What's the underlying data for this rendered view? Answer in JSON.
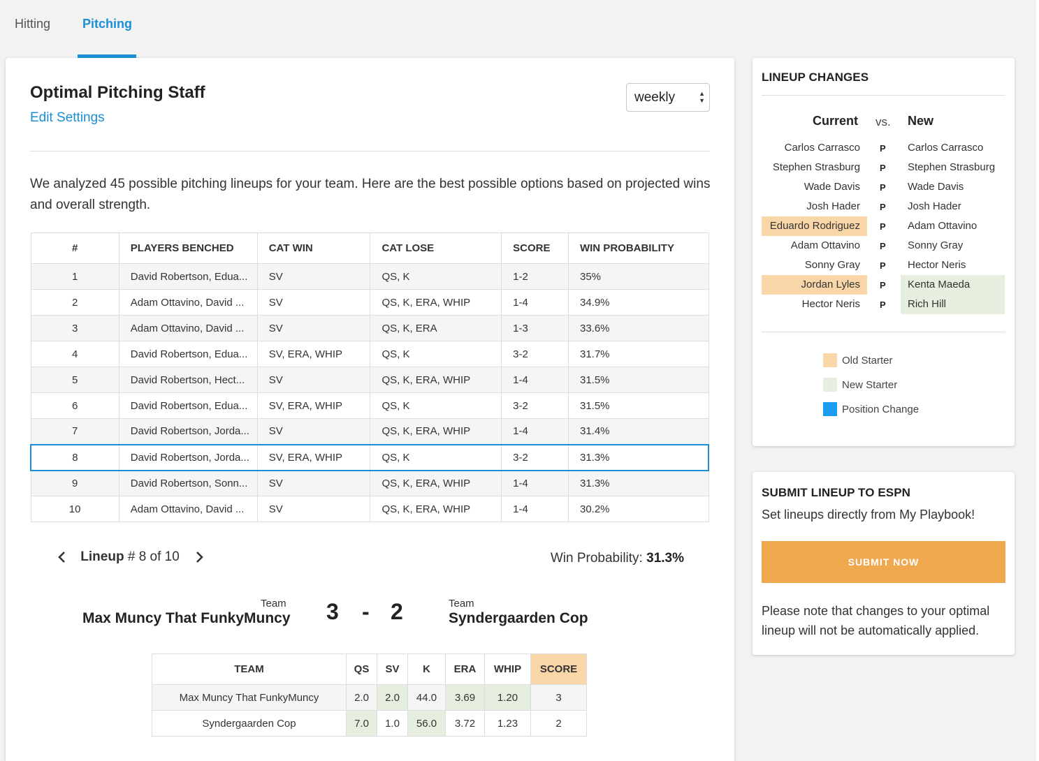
{
  "tabs": [
    {
      "label": "Hitting",
      "active": false
    },
    {
      "label": "Pitching",
      "active": true
    }
  ],
  "main": {
    "title": "Optimal Pitching Staff",
    "edit_link": "Edit Settings",
    "period": "weekly",
    "intro": "We analyzed 45 possible pitching lineups for your team. Here are the best possible options based on projected wins and overall strength.",
    "table": {
      "headers": [
        "#",
        "PLAYERS BENCHED",
        "CAT WIN",
        "CAT LOSE",
        "SCORE",
        "WIN PROBABILITY"
      ],
      "rows": [
        {
          "num": "1",
          "benched": "David Robertson, Edua...",
          "cat_win": "SV",
          "cat_lose": "QS, K",
          "score": "1-2",
          "win_prob": "35%"
        },
        {
          "num": "2",
          "benched": "Adam Ottavino, David ...",
          "cat_win": "SV",
          "cat_lose": "QS, K, ERA, WHIP",
          "score": "1-4",
          "win_prob": "34.9%"
        },
        {
          "num": "3",
          "benched": "Adam Ottavino, David ...",
          "cat_win": "SV",
          "cat_lose": "QS, K, ERA",
          "score": "1-3",
          "win_prob": "33.6%"
        },
        {
          "num": "4",
          "benched": "David Robertson, Edua...",
          "cat_win": "SV, ERA, WHIP",
          "cat_lose": "QS, K",
          "score": "3-2",
          "win_prob": "31.7%"
        },
        {
          "num": "5",
          "benched": "David Robertson, Hect...",
          "cat_win": "SV",
          "cat_lose": "QS, K, ERA, WHIP",
          "score": "1-4",
          "win_prob": "31.5%"
        },
        {
          "num": "6",
          "benched": "David Robertson, Edua...",
          "cat_win": "SV, ERA, WHIP",
          "cat_lose": "QS, K",
          "score": "3-2",
          "win_prob": "31.5%"
        },
        {
          "num": "7",
          "benched": "David Robertson, Jorda...",
          "cat_win": "SV",
          "cat_lose": "QS, K, ERA, WHIP",
          "score": "1-4",
          "win_prob": "31.4%"
        },
        {
          "num": "8",
          "benched": "David Robertson, Jorda...",
          "cat_win": "SV, ERA, WHIP",
          "cat_lose": "QS, K",
          "score": "3-2",
          "win_prob": "31.3%"
        },
        {
          "num": "9",
          "benched": "David Robertson, Sonn...",
          "cat_win": "SV",
          "cat_lose": "QS, K, ERA, WHIP",
          "score": "1-4",
          "win_prob": "31.3%"
        },
        {
          "num": "10",
          "benched": "Adam Ottavino, David ...",
          "cat_win": "SV",
          "cat_lose": "QS, K, ERA, WHIP",
          "score": "1-4",
          "win_prob": "30.2%"
        }
      ],
      "selected_index": 7
    },
    "lineup_nav": {
      "label": "Lineup",
      "number_text": "# 8 of 10",
      "win_prob_label": "Win Probability:",
      "win_prob_value": "31.3%"
    },
    "matchup": {
      "team_label": "Team",
      "home_team": "Max Muncy That FunkyMuncy",
      "away_team": "Syndergaarden Cop",
      "home_score": "3",
      "separator": "-",
      "away_score": "2"
    },
    "category_table": {
      "headers": [
        "TEAM",
        "QS",
        "SV",
        "K",
        "ERA",
        "WHIP",
        "SCORE"
      ],
      "rows": [
        {
          "team": "Max Muncy That FunkyMuncy",
          "values": [
            "2.0",
            "2.0",
            "44.0",
            "3.69",
            "1.20"
          ],
          "score": "3",
          "wins": [
            false,
            true,
            false,
            true,
            true
          ]
        },
        {
          "team": "Syndergaarden Cop",
          "values": [
            "7.0",
            "1.0",
            "56.0",
            "3.72",
            "1.23"
          ],
          "score": "2",
          "wins": [
            true,
            false,
            true,
            false,
            false
          ]
        }
      ]
    }
  },
  "lineup_changes": {
    "title": "LINEUP CHANGES",
    "current_label": "Current",
    "vs_label": "vs.",
    "new_label": "New",
    "rows": [
      {
        "current": "Carlos Carrasco",
        "pos": "P",
        "new": "Carlos Carrasco",
        "current_status": "",
        "new_status": ""
      },
      {
        "current": "Stephen Strasburg",
        "pos": "P",
        "new": "Stephen Strasburg",
        "current_status": "",
        "new_status": ""
      },
      {
        "current": "Wade Davis",
        "pos": "P",
        "new": "Wade Davis",
        "current_status": "",
        "new_status": ""
      },
      {
        "current": "Josh Hader",
        "pos": "P",
        "new": "Josh Hader",
        "current_status": "",
        "new_status": ""
      },
      {
        "current": "Eduardo Rodriguez",
        "pos": "P",
        "new": "Adam Ottavino",
        "current_status": "old",
        "new_status": ""
      },
      {
        "current": "Adam Ottavino",
        "pos": "P",
        "new": "Sonny Gray",
        "current_status": "",
        "new_status": ""
      },
      {
        "current": "Sonny Gray",
        "pos": "P",
        "new": "Hector Neris",
        "current_status": "",
        "new_status": ""
      },
      {
        "current": "Jordan Lyles",
        "pos": "P",
        "new": "Kenta Maeda",
        "current_status": "old",
        "new_status": "new"
      },
      {
        "current": "Hector Neris",
        "pos": "P",
        "new": "Rich Hill",
        "current_status": "",
        "new_status": "new"
      }
    ],
    "legend": [
      {
        "label": "Old Starter",
        "color": "#f8d6a8"
      },
      {
        "label": "New Starter",
        "color": "#e6eedf"
      },
      {
        "label": "Position Change",
        "color": "#1a9cf0"
      }
    ]
  },
  "submit": {
    "title": "SUBMIT LINEUP TO ESPN",
    "subtitle": "Set lineups directly from My Playbook!",
    "button": "SUBMIT NOW",
    "note": "Please note that changes to your optimal lineup will not be automatically applied."
  }
}
